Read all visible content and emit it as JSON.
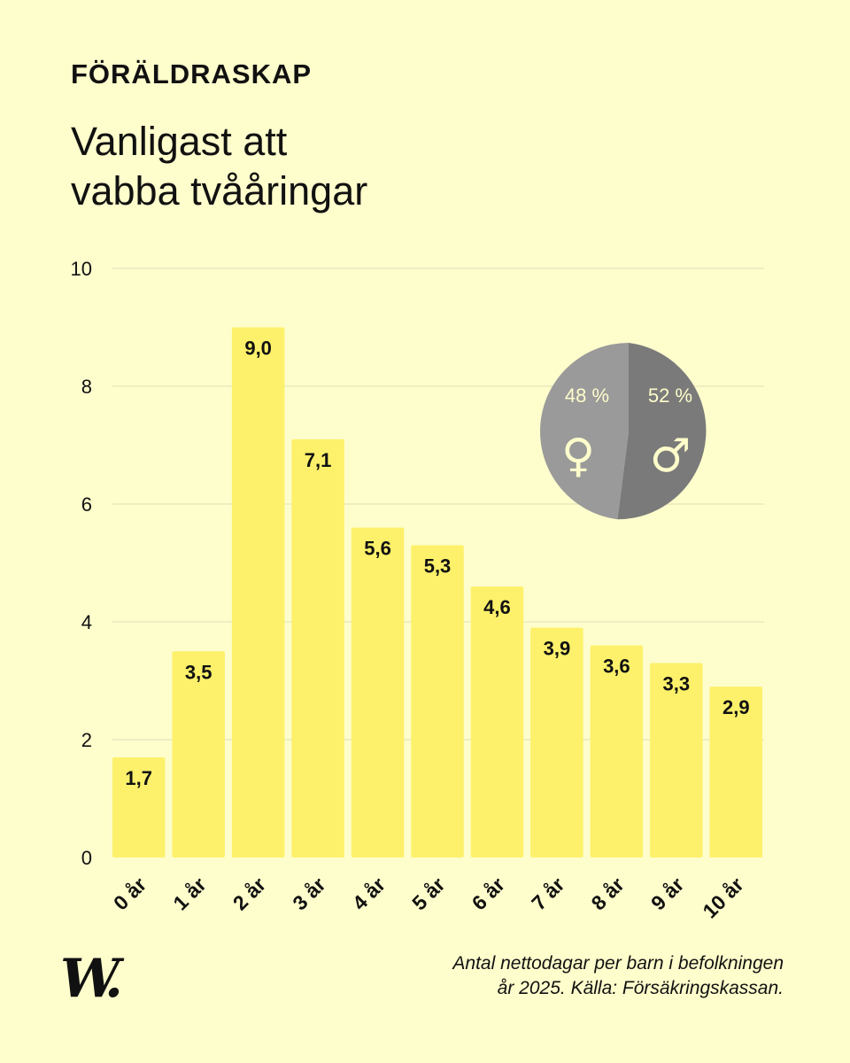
{
  "header": {
    "kicker": "FÖRÄLDRASKAP",
    "title_line1": "Vanligast att",
    "title_line2": "vabba tvååringar"
  },
  "footer": {
    "logo": "W.",
    "caption_line1": "Antal nettodagar per barn i befolkningen",
    "caption_line2": "år 2025. Källa: Försäkringskassan."
  },
  "colors": {
    "background": "#fefdcc",
    "bar": "#fdf16b",
    "grid": "#eae9bd",
    "female": "#9a9a9a",
    "male": "#7a7a7a",
    "symbol": "#fefdcc"
  },
  "chart_data": [
    {
      "type": "bar",
      "categories": [
        "0 år",
        "1 år",
        "2 år",
        "3 år",
        "4 år",
        "5 år",
        "6 år",
        "7 år",
        "8 år",
        "9 år",
        "10 år"
      ],
      "values": [
        1.7,
        3.5,
        9.0,
        7.1,
        5.6,
        5.3,
        4.6,
        3.9,
        3.6,
        3.3,
        2.9
      ],
      "value_labels": [
        "1,7",
        "3,5",
        "9,0",
        "7,1",
        "5,6",
        "5,3",
        "4,6",
        "3,9",
        "3,6",
        "3,3",
        "2,9"
      ],
      "ylim": [
        0,
        10
      ],
      "yticks": [
        0,
        2,
        4,
        6,
        8,
        10
      ],
      "grid": true,
      "xlabel": "",
      "ylabel": ""
    },
    {
      "type": "pie",
      "slices": [
        {
          "label": "48 %",
          "value": 48,
          "symbol": "♀"
        },
        {
          "label": "52 %",
          "value": 52,
          "symbol": "♂"
        }
      ]
    }
  ]
}
